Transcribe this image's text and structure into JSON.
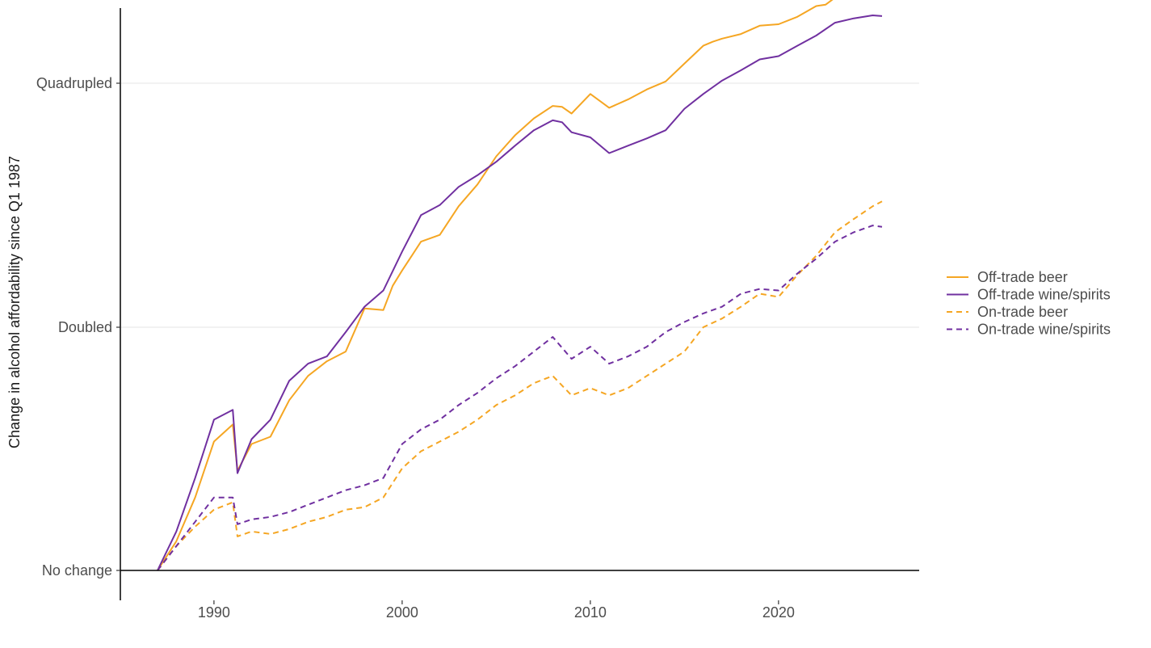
{
  "chart_data": {
    "type": "line",
    "title": "",
    "xlabel": "",
    "ylabel": "Change in alcohol affordability since Q1 1987",
    "xlim": [
      1985,
      2027
    ],
    "ylim": [
      0.93,
      4.3
    ],
    "x_ticks": [
      1990,
      2000,
      2010,
      2020
    ],
    "y_ticks": [
      {
        "value": 1,
        "label": "No change"
      },
      {
        "value": 2,
        "label": "Doubled"
      },
      {
        "value": 4,
        "label": "Quadrupled"
      }
    ],
    "grid": "horizontal major",
    "legend_position": "right",
    "colors": {
      "orange": "#F5A623",
      "purple": "#7030A0"
    },
    "series": [
      {
        "name": "Off-trade beer",
        "color": "#F5A623",
        "dash": "solid",
        "points": [
          [
            1987,
            1.0
          ],
          [
            1988,
            1.12
          ],
          [
            1989,
            1.3
          ],
          [
            1990,
            1.53
          ],
          [
            1991,
            1.6
          ],
          [
            1991.25,
            1.41
          ],
          [
            1992,
            1.52
          ],
          [
            1993,
            1.55
          ],
          [
            1994,
            1.7
          ],
          [
            1995,
            1.8
          ],
          [
            1996,
            1.86
          ],
          [
            1997,
            1.9
          ],
          [
            1998,
            2.11
          ],
          [
            1999,
            2.1
          ],
          [
            1999.5,
            2.25
          ],
          [
            2000,
            2.35
          ],
          [
            2001,
            2.55
          ],
          [
            2002,
            2.6
          ],
          [
            2003,
            2.82
          ],
          [
            2004,
            3.0
          ],
          [
            2005,
            3.25
          ],
          [
            2006,
            3.45
          ],
          [
            2007,
            3.62
          ],
          [
            2008,
            3.75
          ],
          [
            2008.5,
            3.74
          ],
          [
            2009,
            3.67
          ],
          [
            2010,
            3.88
          ],
          [
            2011,
            3.73
          ],
          [
            2012,
            3.82
          ],
          [
            2013,
            3.93
          ],
          [
            2014,
            4.02
          ],
          [
            2015,
            4.23
          ],
          [
            2016,
            4.45
          ],
          [
            2016.5,
            4.5
          ],
          [
            2017,
            4.54
          ],
          [
            2018,
            4.6
          ],
          [
            2019,
            4.71
          ],
          [
            2020,
            4.73
          ],
          [
            2021,
            4.83
          ],
          [
            2022,
            4.98
          ],
          [
            2022.5,
            5.0
          ],
          [
            2023,
            5.1
          ],
          [
            2024,
            5.12
          ],
          [
            2025,
            5.23
          ],
          [
            2025.5,
            5.2
          ]
        ]
      },
      {
        "name": "Off-trade wine/spirits",
        "color": "#7030A0",
        "dash": "solid",
        "points": [
          [
            1987,
            1.0
          ],
          [
            1988,
            1.16
          ],
          [
            1989,
            1.38
          ],
          [
            1990,
            1.62
          ],
          [
            1991,
            1.66
          ],
          [
            1991.25,
            1.4
          ],
          [
            1992,
            1.54
          ],
          [
            1993,
            1.62
          ],
          [
            1994,
            1.78
          ],
          [
            1995,
            1.85
          ],
          [
            1996,
            1.88
          ],
          [
            1997,
            1.98
          ],
          [
            1998,
            2.12
          ],
          [
            1999,
            2.22
          ],
          [
            2000,
            2.48
          ],
          [
            2001,
            2.75
          ],
          [
            2002,
            2.83
          ],
          [
            2003,
            2.98
          ],
          [
            2004,
            3.08
          ],
          [
            2005,
            3.2
          ],
          [
            2006,
            3.35
          ],
          [
            2007,
            3.5
          ],
          [
            2008,
            3.6
          ],
          [
            2008.5,
            3.58
          ],
          [
            2009,
            3.48
          ],
          [
            2010,
            3.43
          ],
          [
            2011,
            3.28
          ],
          [
            2012,
            3.35
          ],
          [
            2013,
            3.42
          ],
          [
            2014,
            3.5
          ],
          [
            2015,
            3.72
          ],
          [
            2016,
            3.88
          ],
          [
            2017,
            4.03
          ],
          [
            2018,
            4.15
          ],
          [
            2019,
            4.28
          ],
          [
            2020,
            4.32
          ],
          [
            2021,
            4.45
          ],
          [
            2022,
            4.58
          ],
          [
            2023,
            4.75
          ],
          [
            2024,
            4.81
          ],
          [
            2025,
            4.85
          ],
          [
            2025.5,
            4.84
          ]
        ]
      },
      {
        "name": "On-trade beer",
        "color": "#F5A623",
        "dash": "dashed",
        "points": [
          [
            1987,
            1.0
          ],
          [
            1988,
            1.1
          ],
          [
            1989,
            1.18
          ],
          [
            1990,
            1.25
          ],
          [
            1991,
            1.28
          ],
          [
            1991.25,
            1.14
          ],
          [
            1992,
            1.16
          ],
          [
            1993,
            1.15
          ],
          [
            1994,
            1.17
          ],
          [
            1995,
            1.2
          ],
          [
            1996,
            1.22
          ],
          [
            1997,
            1.25
          ],
          [
            1998,
            1.26
          ],
          [
            1999,
            1.3
          ],
          [
            2000,
            1.42
          ],
          [
            2001,
            1.49
          ],
          [
            2002,
            1.53
          ],
          [
            2003,
            1.57
          ],
          [
            2004,
            1.62
          ],
          [
            2005,
            1.68
          ],
          [
            2006,
            1.72
          ],
          [
            2007,
            1.77
          ],
          [
            2008,
            1.8
          ],
          [
            2009,
            1.72
          ],
          [
            2010,
            1.75
          ],
          [
            2011,
            1.72
          ],
          [
            2012,
            1.75
          ],
          [
            2013,
            1.8
          ],
          [
            2014,
            1.85
          ],
          [
            2015,
            1.9
          ],
          [
            2016,
            2.0
          ],
          [
            2017,
            2.05
          ],
          [
            2018,
            2.12
          ],
          [
            2019,
            2.2
          ],
          [
            2020,
            2.18
          ],
          [
            2021,
            2.32
          ],
          [
            2022,
            2.45
          ],
          [
            2023,
            2.62
          ],
          [
            2024,
            2.72
          ],
          [
            2025,
            2.82
          ],
          [
            2025.5,
            2.86
          ]
        ]
      },
      {
        "name": "On-trade wine/spirits",
        "color": "#7030A0",
        "dash": "dashed",
        "points": [
          [
            1987,
            1.0
          ],
          [
            1988,
            1.1
          ],
          [
            1989,
            1.2
          ],
          [
            1990,
            1.3
          ],
          [
            1991,
            1.3
          ],
          [
            1991.25,
            1.19
          ],
          [
            1992,
            1.21
          ],
          [
            1993,
            1.22
          ],
          [
            1994,
            1.24
          ],
          [
            1995,
            1.27
          ],
          [
            1996,
            1.3
          ],
          [
            1997,
            1.33
          ],
          [
            1998,
            1.35
          ],
          [
            1999,
            1.38
          ],
          [
            2000,
            1.52
          ],
          [
            2001,
            1.58
          ],
          [
            2002,
            1.62
          ],
          [
            2003,
            1.68
          ],
          [
            2004,
            1.73
          ],
          [
            2005,
            1.79
          ],
          [
            2006,
            1.84
          ],
          [
            2007,
            1.9
          ],
          [
            2008,
            1.96
          ],
          [
            2009,
            1.87
          ],
          [
            2010,
            1.92
          ],
          [
            2011,
            1.85
          ],
          [
            2012,
            1.88
          ],
          [
            2013,
            1.92
          ],
          [
            2014,
            1.98
          ],
          [
            2015,
            2.03
          ],
          [
            2016,
            2.08
          ],
          [
            2017,
            2.12
          ],
          [
            2018,
            2.2
          ],
          [
            2019,
            2.23
          ],
          [
            2020,
            2.22
          ],
          [
            2021,
            2.33
          ],
          [
            2022,
            2.43
          ],
          [
            2023,
            2.55
          ],
          [
            2024,
            2.62
          ],
          [
            2025,
            2.67
          ],
          [
            2025.5,
            2.66
          ]
        ]
      }
    ]
  }
}
